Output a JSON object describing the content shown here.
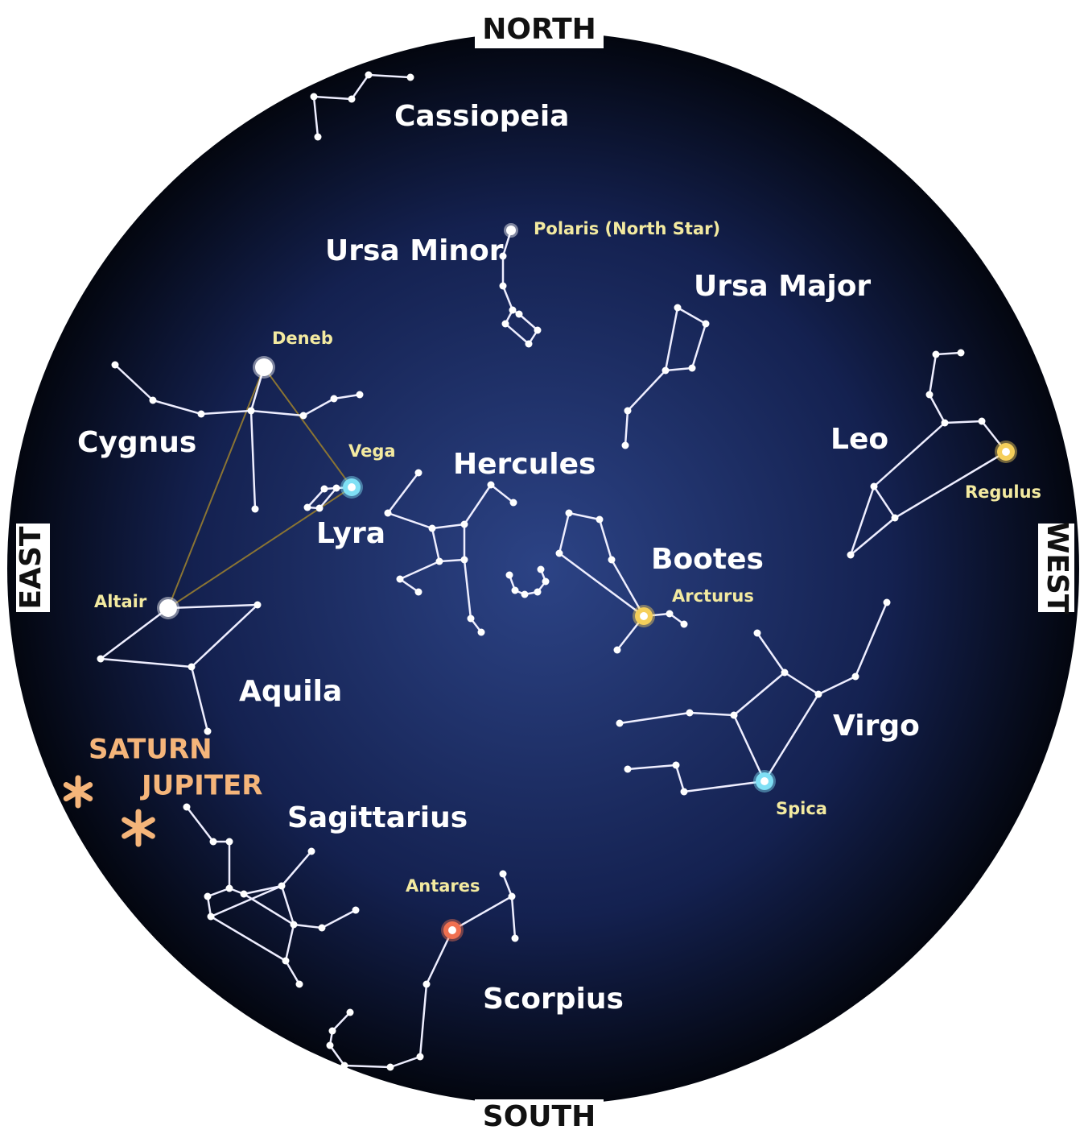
{
  "directions": {
    "north": "NORTH",
    "south": "SOUTH",
    "east": "EAST",
    "west": "WEST"
  },
  "constellations": [
    {
      "label": "Cassiopeia"
    },
    {
      "label": "Ursa Minor"
    },
    {
      "label": "Ursa Major"
    },
    {
      "label": "Cygnus"
    },
    {
      "label": "Hercules"
    },
    {
      "label": "Lyra"
    },
    {
      "label": "Leo"
    },
    {
      "label": "Bootes"
    },
    {
      "label": "Aquila"
    },
    {
      "label": "Virgo"
    },
    {
      "label": "Sagittarius"
    },
    {
      "label": "Scorpius"
    }
  ],
  "stars": [
    {
      "label": "Polaris (North Star)"
    },
    {
      "label": "Deneb"
    },
    {
      "label": "Vega"
    },
    {
      "label": "Altair"
    },
    {
      "label": "Arcturus"
    },
    {
      "label": "Regulus"
    },
    {
      "label": "Spica"
    },
    {
      "label": "Antares"
    }
  ],
  "planets": [
    {
      "label": "SATURN"
    },
    {
      "label": "JUPITER"
    }
  ]
}
